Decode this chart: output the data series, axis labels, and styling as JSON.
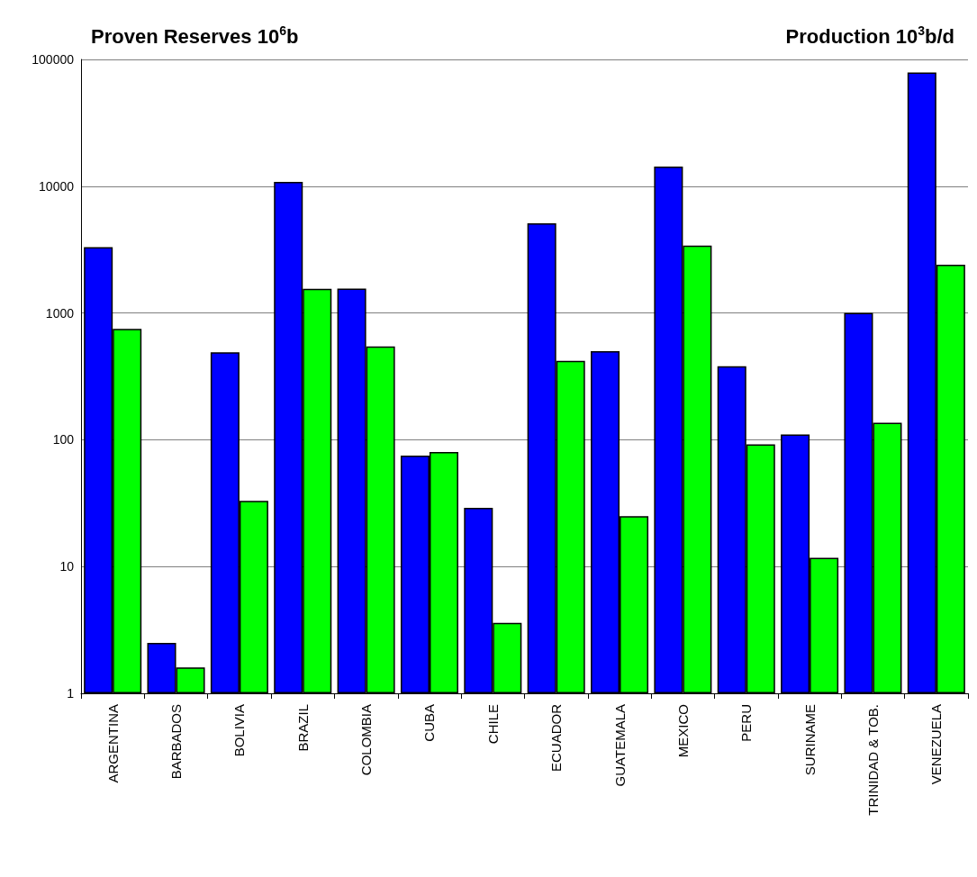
{
  "chart_data": {
    "type": "bar",
    "title": "Proven Reserves 10$^{6}$b",
    "annotations": [
      "Production 10$^{3}$b/d"
    ],
    "categories": [
      "ARGENTINA",
      "BARBADOS",
      "BOLIVIA",
      "BRAZIL",
      "COLOMBIA",
      "CUBA",
      "CHILE",
      "ECUADOR",
      "GUATEMALA",
      "MEXICO",
      "PERU",
      "SURINAME",
      "TRINIDAD & TOB.",
      "VENEZUELA"
    ],
    "series": [
      {
        "color": "#0000ff",
        "values": [
          3300,
          2.5,
          490,
          10800,
          1560,
          75,
          29,
          5100,
          500,
          14300,
          380,
          110,
          1000,
          79000
        ]
      },
      {
        "color": "#00ff00",
        "values": [
          750,
          1.6,
          33,
          1550,
          545,
          80,
          3.6,
          420,
          25,
          3400,
          92,
          11.7,
          136,
          2400
        ]
      }
    ],
    "log": true,
    "ylim": [
      1,
      100000
    ],
    "yticks": [
      1,
      10,
      100,
      1000,
      10000,
      100000
    ],
    "grid": "y"
  }
}
